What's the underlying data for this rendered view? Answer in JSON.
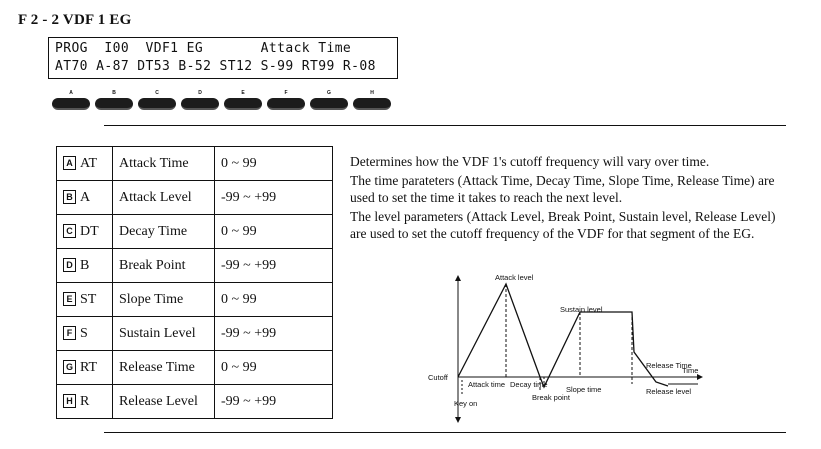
{
  "section_title": "F 2 - 2 VDF 1 EG",
  "lcd": {
    "line1": "PROG  I00  VDF1 EG       Attack Time",
    "line2": "AT70 A-87 DT53 B-52 ST12 S-99 RT99 R-08",
    "buttons": [
      "A",
      "B",
      "C",
      "D",
      "E",
      "F",
      "G",
      "H"
    ]
  },
  "parameters": [
    {
      "letter": "A",
      "abbr": "AT",
      "name": "Attack Time",
      "range": "0 ~ 99"
    },
    {
      "letter": "B",
      "abbr": "A",
      "name": "Attack Level",
      "range": "-99 ~ +99"
    },
    {
      "letter": "C",
      "abbr": "DT",
      "name": "Decay Time",
      "range": "0 ~ 99"
    },
    {
      "letter": "D",
      "abbr": "B",
      "name": "Break Point",
      "range": "-99 ~ +99"
    },
    {
      "letter": "E",
      "abbr": "ST",
      "name": "Slope Time",
      "range": "0 ~ 99"
    },
    {
      "letter": "F",
      "abbr": "S",
      "name": "Sustain Level",
      "range": "-99 ~ +99"
    },
    {
      "letter": "G",
      "abbr": "RT",
      "name": "Release Time",
      "range": "0 ~ 99"
    },
    {
      "letter": "H",
      "abbr": "R",
      "name": "Release Level",
      "range": "-99 ~ +99"
    }
  ],
  "description": [
    "Determines how the VDF 1's cutoff frequency will vary over time.",
    "The time parateters (Attack Time, Decay Time, Slope Time, Release Time) are used to set the time it takes to reach the next level.",
    "The level parameters (Attack Level, Break Point, Sustain level, Release Level) are used to set the cutoff frequency of the VDF for that segment of the EG."
  ],
  "diagram": {
    "labels": {
      "attack_level": "Attack level",
      "sustain_level": "Sustain level",
      "release_time": "Release Time",
      "time": "Time",
      "cutoff": "Cutoff",
      "attack_time": "Attack time",
      "decay_time": "Decay time",
      "break_point": "Break point",
      "slope_time": "Slope time",
      "key_on": "Key on",
      "release_level": "Release level"
    }
  }
}
